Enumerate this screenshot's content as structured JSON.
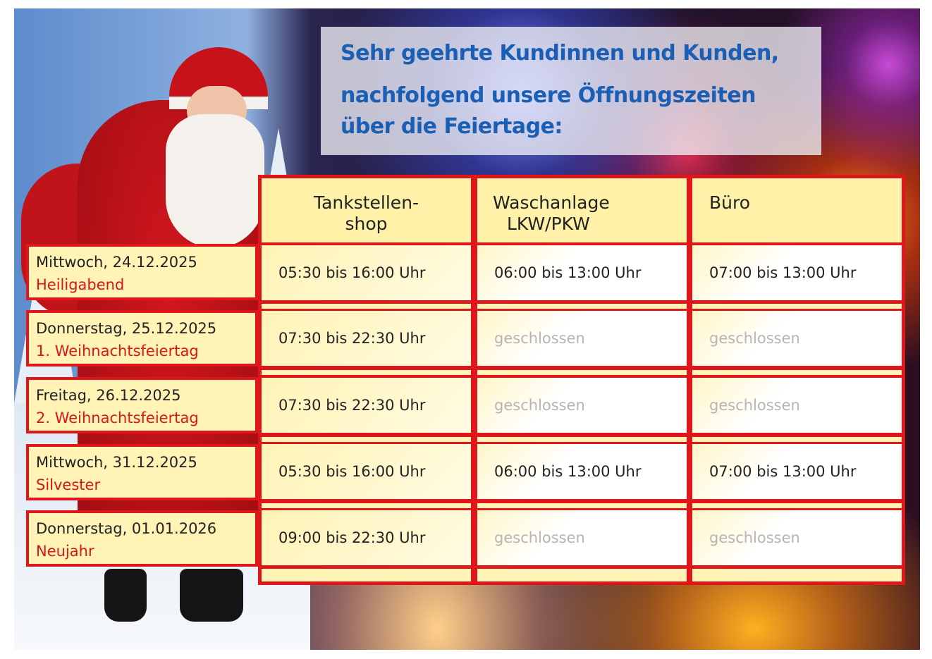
{
  "heading": {
    "line1": "Sehr geehrte Kundinnen und Kunden,",
    "line2": "nachfolgend unsere Öffnungszeiten",
    "line3": "über die Feiertage:",
    "color": "#1a5fb4"
  },
  "table": {
    "border_color": "#e0161d",
    "columns": [
      "Tankstellen-\nshop",
      "Waschanlage\n LKW/PKW",
      "Büro"
    ],
    "col1_line1": "Tankstellen-",
    "col1_line2": "shop",
    "col2_line1": "Waschanlage",
    "col2_line2": "LKW/PKW",
    "col3": "Büro",
    "rows": [
      {
        "date": "Mittwoch, 24.12.2025",
        "holiday": "Heiligabend",
        "shop": "05:30 bis 16:00 Uhr",
        "wash": "06:00 bis 13:00 Uhr",
        "office": "07:00 bis 13:00 Uhr"
      },
      {
        "date": "Donnerstag, 25.12.2025",
        "holiday": "1. Weihnachtsfeiertag",
        "shop": "07:30 bis 22:30 Uhr",
        "wash": "geschlossen",
        "office": "geschlossen"
      },
      {
        "date": "Freitag, 26.12.2025",
        "holiday": "2. Weihnachtsfeiertag",
        "shop": "07:30 bis 22:30 Uhr",
        "wash": "geschlossen",
        "office": "geschlossen"
      },
      {
        "date": "Mittwoch, 31.12.2025",
        "holiday": "Silvester",
        "shop": "05:30 bis 16:00 Uhr",
        "wash": "06:00 bis 13:00 Uhr",
        "office": "07:00 bis 13:00 Uhr"
      },
      {
        "date": "Donnerstag, 01.01.2026",
        "holiday": "Neujahr",
        "shop": "09:00 bis 22:30 Uhr",
        "wash": "geschlossen",
        "office": "geschlossen"
      }
    ]
  }
}
